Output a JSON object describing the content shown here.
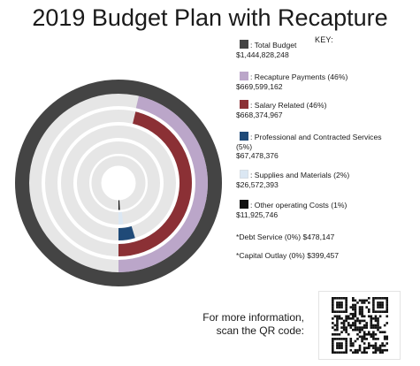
{
  "title": "2019 Budget Plan with Recapture",
  "key_heading": "KEY:",
  "chart_data": {
    "type": "pie",
    "title": "2019 Budget Plan with Recapture",
    "subtype": "concentric radial bar rings, each ring arc proportional to share of total budget",
    "legend_placement": "right",
    "series": [
      {
        "name": "Total Budget",
        "value": 1444828248,
        "percent": 100,
        "color": "#444444"
      },
      {
        "name": "Recapture Payments",
        "value": 669599162,
        "percent": 46,
        "color": "#bba6c9"
      },
      {
        "name": "Salary Related",
        "value": 668374967,
        "percent": 46,
        "color": "#8b3035"
      },
      {
        "name": "Professional and Contracted Services",
        "value": 67478376,
        "percent": 5,
        "color": "#1f4a78"
      },
      {
        "name": "Supplies and Materials",
        "value": 26572393,
        "percent": 2,
        "color": "#dbe7f3"
      },
      {
        "name": "Other operating Costs",
        "value": 11925746,
        "percent": 1,
        "color": "#111111"
      }
    ]
  },
  "legend": {
    "items": [
      {
        "label": ": Total Budget",
        "value": "$1,444,828,248",
        "color": "#444444"
      },
      {
        "label": ": Recapture Payments (46%)",
        "value": "$669,599,162",
        "color": "#bba6c9"
      },
      {
        "label": ": Salary Related (46%)",
        "value": "$668,374,967",
        "color": "#8b3035"
      },
      {
        "label": ": Professional and Contracted Services",
        "label2": "(5%)",
        "value": "$67,478,376",
        "color": "#1f4a78"
      },
      {
        "label": ": Supplies and Materials (2%)",
        "value": "$26,572,393",
        "color": "#dbe7f3"
      },
      {
        "label": ": Other operating Costs (1%)",
        "value": "$11,925,746",
        "color": "#111111"
      }
    ]
  },
  "notes": {
    "debt_service": "*Debt Service  (0%) $478,147",
    "capital_outlay": "*Capital Outlay (0%) $399,457"
  },
  "info": {
    "line1": "For more information,",
    "line2": "scan the QR code:"
  },
  "colors": {
    "track": "#e6e6e6"
  }
}
